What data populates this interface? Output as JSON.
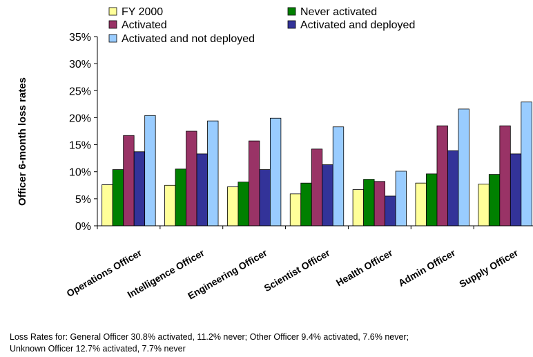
{
  "chart_data": {
    "type": "bar",
    "title": "",
    "xlabel": "",
    "ylabel": "Officer 6-month loss rates",
    "ylim": [
      0,
      35
    ],
    "yticks": [
      "0%",
      "5%",
      "10%",
      "15%",
      "20%",
      "25%",
      "30%",
      "35%"
    ],
    "grid": false,
    "legend_position": "top",
    "categories": [
      "Operations Officer",
      "Intelligence Officer",
      "Engineering Officer",
      "Scientist Officer",
      "Health Officer",
      "Admin Officer",
      "Supply Officer"
    ],
    "series": [
      {
        "name": "FY 2000",
        "color": "#FFFF99",
        "values": [
          7.6,
          7.5,
          7.2,
          5.9,
          6.7,
          7.9,
          7.7
        ]
      },
      {
        "name": "Never activated",
        "color": "#008000",
        "values": [
          10.4,
          10.5,
          8.1,
          7.9,
          8.6,
          9.6,
          9.5
        ]
      },
      {
        "name": "Activated",
        "color": "#993366",
        "values": [
          16.7,
          17.5,
          15.7,
          14.2,
          8.2,
          18.5,
          18.5
        ]
      },
      {
        "name": "Activated and deployed",
        "color": "#333399",
        "values": [
          13.7,
          13.3,
          10.4,
          11.3,
          5.5,
          13.9,
          13.3
        ]
      },
      {
        "name": "Activated and not deployed",
        "color": "#99CCFF",
        "values": [
          20.4,
          19.4,
          19.9,
          18.3,
          10.1,
          21.6,
          22.9
        ]
      }
    ]
  },
  "footnote": {
    "line1": "Loss Rates for: General Officer 30.8% activated, 11.2% never; Other Officer 9.4% activated, 7.6% never;",
    "line2": "Unknown Officer 12.7% activated, 7.7% never"
  }
}
